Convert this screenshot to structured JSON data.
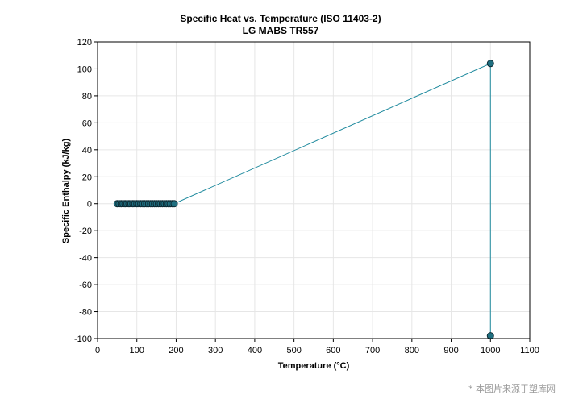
{
  "chart_data": {
    "type": "line",
    "title": "Specific Heat vs. Temperature (ISO 11403-2)",
    "subtitle": "LG MABS TR557",
    "xlabel": "Temperature (°C)",
    "ylabel": "Specific Enthalpy (kJ/kg)",
    "xlim": [
      0,
      1100
    ],
    "ylim": [
      -100,
      120
    ],
    "xticks": [
      0,
      100,
      200,
      300,
      400,
      500,
      600,
      700,
      800,
      900,
      1000,
      1100
    ],
    "yticks": [
      -100,
      -80,
      -60,
      -40,
      -20,
      0,
      20,
      40,
      60,
      80,
      100,
      120
    ],
    "grid": true,
    "series": [
      {
        "x": [
          50,
          55,
          60,
          65,
          70,
          75,
          80,
          85,
          90,
          95,
          100,
          105,
          110,
          115,
          120,
          125,
          130,
          135,
          140,
          145,
          150,
          155,
          160,
          165,
          170,
          175,
          180,
          185,
          190,
          195,
          1000,
          1000
        ],
        "y": [
          0,
          0,
          0,
          0,
          0,
          0,
          0,
          0,
          0,
          0,
          0,
          0,
          0,
          0,
          0,
          0,
          0,
          0,
          0,
          0,
          0,
          0,
          0,
          0,
          0,
          0,
          0,
          0,
          0,
          0,
          104,
          -98
        ]
      }
    ]
  },
  "colors": {
    "line": "#1f8a9e",
    "marker_fill": "#1f6f80",
    "marker_stroke": "#0d2a33",
    "grid": "#e6e6e6",
    "axis": "#000000"
  },
  "watermark": "* 本图片来源于塑库网"
}
